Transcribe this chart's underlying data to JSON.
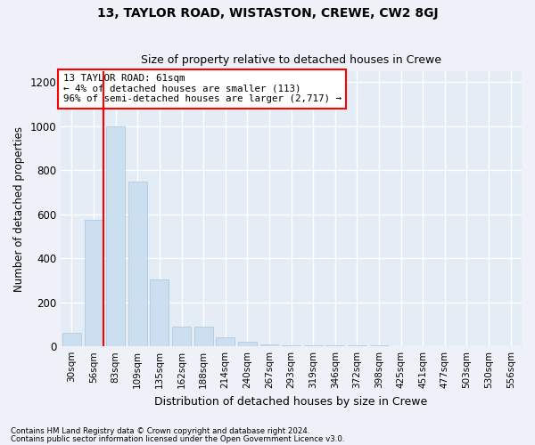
{
  "title1": "13, TAYLOR ROAD, WISTASTON, CREWE, CW2 8GJ",
  "title2": "Size of property relative to detached houses in Crewe",
  "xlabel": "Distribution of detached houses by size in Crewe",
  "ylabel": "Number of detached properties",
  "bar_labels": [
    "30sqm",
    "56sqm",
    "83sqm",
    "109sqm",
    "135sqm",
    "162sqm",
    "188sqm",
    "214sqm",
    "240sqm",
    "267sqm",
    "293sqm",
    "319sqm",
    "346sqm",
    "372sqm",
    "398sqm",
    "425sqm",
    "451sqm",
    "477sqm",
    "503sqm",
    "530sqm",
    "556sqm"
  ],
  "bar_values": [
    60,
    575,
    1000,
    750,
    305,
    90,
    90,
    40,
    20,
    10,
    5,
    5,
    5,
    3,
    3,
    2,
    2,
    2,
    2,
    2,
    2
  ],
  "bar_color": "#ccdff0",
  "bar_edge_color": "#a8c4dc",
  "vline_position": 1.5,
  "vline_color": "red",
  "annotation_text": "13 TAYLOR ROAD: 61sqm\n← 4% of detached houses are smaller (113)\n96% of semi-detached houses are larger (2,717) →",
  "annotation_box_color": "white",
  "annotation_box_edgecolor": "red",
  "ylim": [
    0,
    1250
  ],
  "yticks": [
    0,
    200,
    400,
    600,
    800,
    1000,
    1200
  ],
  "footer1": "Contains HM Land Registry data © Crown copyright and database right 2024.",
  "footer2": "Contains public sector information licensed under the Open Government Licence v3.0.",
  "bg_color": "#eef2f8",
  "plot_bg_color": "#e4ecf5"
}
